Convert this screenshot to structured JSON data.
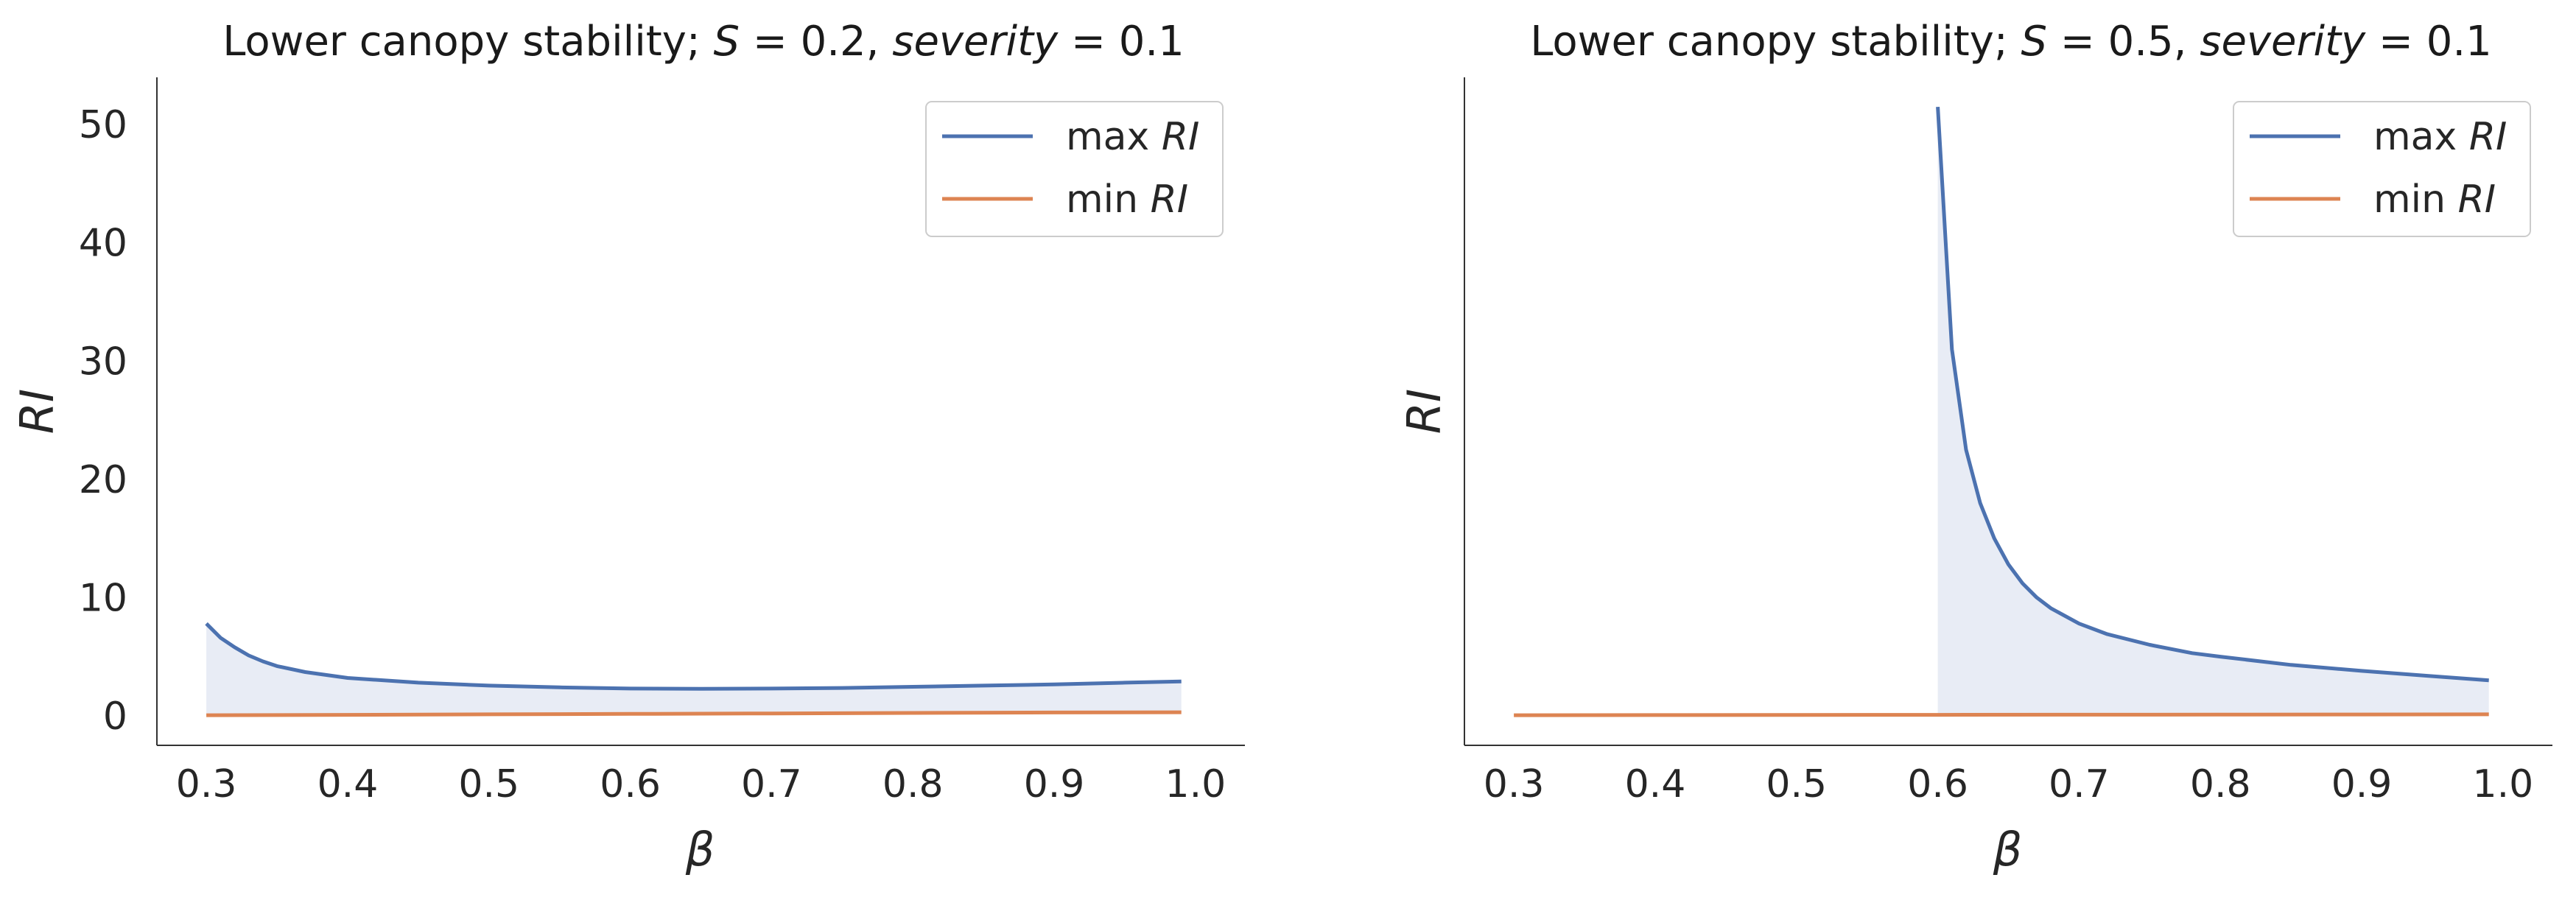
{
  "chart_data": [
    {
      "type": "line",
      "title": {
        "prefix": "Lower canopy stability; ",
        "s_var": "S",
        "s_val": " = 0.2,  ",
        "sev_var": "severity",
        "sev_val": " = 0.1"
      },
      "xlabel": "β",
      "ylabel": "RI",
      "xlim": [
        0.265,
        1.035
      ],
      "ylim": [
        -2.5,
        54
      ],
      "xticks": [
        "0.3",
        "0.4",
        "0.5",
        "0.6",
        "0.7",
        "0.8",
        "0.9",
        "1.0"
      ],
      "xtick_values": [
        0.3,
        0.4,
        0.5,
        0.6,
        0.7,
        0.8,
        0.9,
        1.0
      ],
      "yticks": [
        "0",
        "10",
        "20",
        "30",
        "40",
        "50"
      ],
      "ytick_values": [
        0,
        10,
        20,
        30,
        40,
        50
      ],
      "show_yticks": true,
      "fill_between": true,
      "series": [
        {
          "name": "max RI",
          "legend_prefix": "max ",
          "legend_var": "RI",
          "color": "#4c72b0",
          "x": [
            0.3,
            0.31,
            0.32,
            0.33,
            0.34,
            0.35,
            0.37,
            0.4,
            0.45,
            0.5,
            0.55,
            0.6,
            0.65,
            0.7,
            0.75,
            0.8,
            0.85,
            0.9,
            0.95,
            0.99
          ],
          "values": [
            7.8,
            6.6,
            5.8,
            5.1,
            4.6,
            4.2,
            3.7,
            3.2,
            2.8,
            2.55,
            2.4,
            2.3,
            2.28,
            2.3,
            2.35,
            2.45,
            2.55,
            2.65,
            2.8,
            2.9
          ]
        },
        {
          "name": "min RI",
          "legend_prefix": "min ",
          "legend_var": "RI",
          "color": "#dd8452",
          "x": [
            0.3,
            0.4,
            0.5,
            0.6,
            0.7,
            0.8,
            0.9,
            0.99
          ],
          "values": [
            0.05,
            0.08,
            0.12,
            0.16,
            0.2,
            0.24,
            0.28,
            0.3
          ]
        }
      ],
      "legend": "top-right"
    },
    {
      "type": "line",
      "title": {
        "prefix": "Lower canopy stability; ",
        "s_var": "S",
        "s_val": " = 0.5,  ",
        "sev_var": "severity",
        "sev_val": " = 0.1"
      },
      "xlabel": "β",
      "ylabel": "RI",
      "xlim": [
        0.265,
        1.035
      ],
      "ylim": [
        -2.5,
        54
      ],
      "xticks": [
        "0.3",
        "0.4",
        "0.5",
        "0.6",
        "0.7",
        "0.8",
        "0.9",
        "1.0"
      ],
      "xtick_values": [
        0.3,
        0.4,
        0.5,
        0.6,
        0.7,
        0.8,
        0.9,
        1.0
      ],
      "yticks": [],
      "ytick_values": [],
      "show_yticks": false,
      "fill_between": true,
      "series": [
        {
          "name": "max RI",
          "legend_prefix": "max ",
          "legend_var": "RI",
          "color": "#4c72b0",
          "x": [
            0.6,
            0.61,
            0.62,
            0.63,
            0.64,
            0.65,
            0.66,
            0.67,
            0.68,
            0.7,
            0.72,
            0.75,
            0.78,
            0.8,
            0.85,
            0.9,
            0.95,
            0.99
          ],
          "values": [
            51.5,
            31.0,
            22.5,
            18.0,
            15.0,
            12.8,
            11.2,
            10.0,
            9.1,
            7.8,
            6.9,
            6.0,
            5.3,
            5.0,
            4.3,
            3.8,
            3.35,
            3.0
          ]
        },
        {
          "name": "min RI",
          "legend_prefix": "min ",
          "legend_var": "RI",
          "color": "#dd8452",
          "x": [
            0.3,
            0.4,
            0.5,
            0.6,
            0.7,
            0.8,
            0.9,
            0.99
          ],
          "values": [
            0.05,
            0.06,
            0.07,
            0.08,
            0.09,
            0.1,
            0.11,
            0.12
          ]
        }
      ],
      "legend": "top-right"
    }
  ]
}
